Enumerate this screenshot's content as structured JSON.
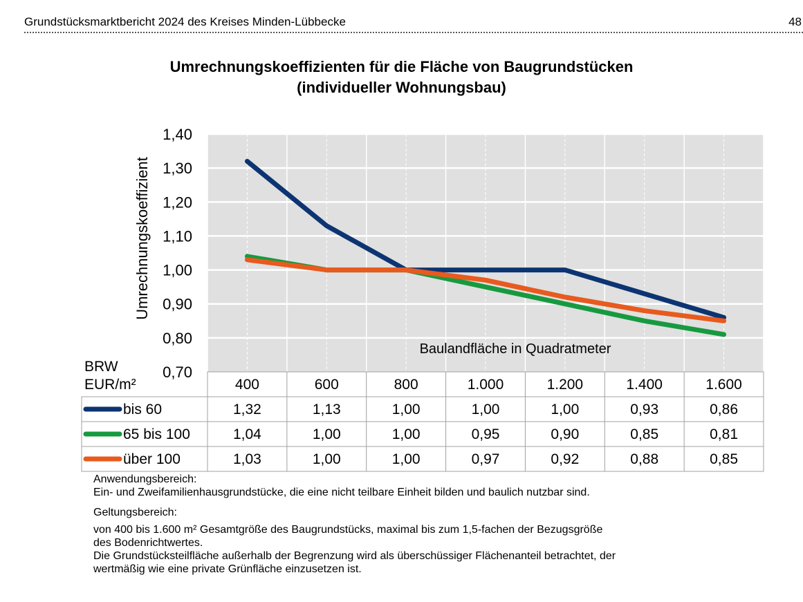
{
  "header": {
    "title": "Grundstücksmarktbericht 2024 des Kreises Minden-Lübbecke",
    "page": "48"
  },
  "chart_data": {
    "type": "line",
    "title": "Umrechnungskoeffizienten für die Fläche von Baugrundstücken",
    "subtitle": "(individueller Wohnungsbau)",
    "xlabel": "Baulandfläche in Quadratmeter",
    "ylabel": "Umrechnungskoeffizient",
    "ylim": [
      0.7,
      1.4
    ],
    "yticks": [
      "0,70",
      "0,80",
      "0,90",
      "1,00",
      "1,10",
      "1,20",
      "1,30",
      "1,40"
    ],
    "ytick_values": [
      0.7,
      0.8,
      0.9,
      1.0,
      1.1,
      1.2,
      1.3,
      1.4
    ],
    "categories": [
      "400",
      "600",
      "800",
      "1.000",
      "1.200",
      "1.400",
      "1.600"
    ],
    "legend_header": [
      "BRW",
      "EUR/m²"
    ],
    "grid": true,
    "legend": "data-table-below",
    "series": [
      {
        "name": "bis 60",
        "color": "#0d3472",
        "values": [
          1.32,
          1.13,
          1.0,
          1.0,
          1.0,
          0.93,
          0.86
        ],
        "labels": [
          "1,32",
          "1,13",
          "1,00",
          "1,00",
          "1,00",
          "0,93",
          "0,86"
        ]
      },
      {
        "name": "65 bis 100",
        "color": "#179a3f",
        "values": [
          1.04,
          1.0,
          1.0,
          0.95,
          0.9,
          0.85,
          0.81
        ],
        "labels": [
          "1,04",
          "1,00",
          "1,00",
          "0,95",
          "0,90",
          "0,85",
          "0,81"
        ]
      },
      {
        "name": "über 100",
        "color": "#e85a1e",
        "values": [
          1.03,
          1.0,
          1.0,
          0.97,
          0.92,
          0.88,
          0.85
        ],
        "labels": [
          "1,03",
          "1,00",
          "1,00",
          "0,97",
          "0,92",
          "0,88",
          "0,85"
        ]
      }
    ]
  },
  "notes": {
    "anwendung_label": "Anwendungsbereich:",
    "anwendung_text": "Ein- und Zweifamilienhausgrundstücke, die eine nicht teilbare Einheit bilden und baulich nutzbar sind.",
    "geltung_label": "Geltungsbereich:",
    "geltung_line1": "von 400 bis 1.600 m² Gesamtgröße des Baugrundstücks, maximal bis zum 1,5-fachen der Bezugsgröße",
    "geltung_line2": "des Bodenrichtwertes.",
    "geltung_line3": "Die Grundstücksteilfläche außerhalb der Begrenzung wird als überschüssiger Flächenanteil betrachtet, der",
    "geltung_line4": "wertmäßig wie eine private Grünfläche einzusetzen ist."
  }
}
